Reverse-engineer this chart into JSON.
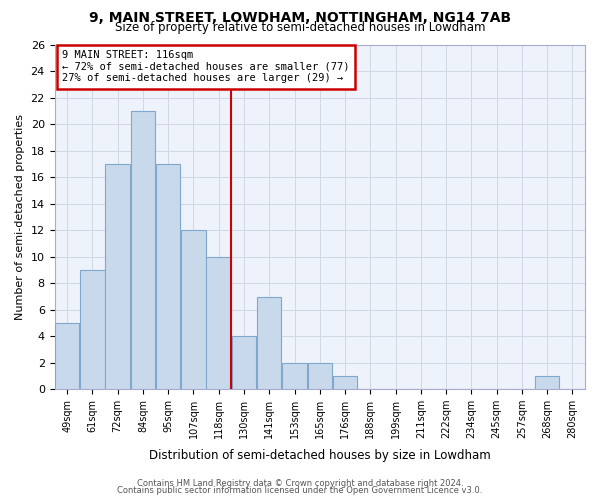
{
  "title": "9, MAIN STREET, LOWDHAM, NOTTINGHAM, NG14 7AB",
  "subtitle": "Size of property relative to semi-detached houses in Lowdham",
  "xlabel": "Distribution of semi-detached houses by size in Lowdham",
  "ylabel": "Number of semi-detached properties",
  "bins": [
    "49sqm",
    "61sqm",
    "72sqm",
    "84sqm",
    "95sqm",
    "107sqm",
    "118sqm",
    "130sqm",
    "141sqm",
    "153sqm",
    "165sqm",
    "176sqm",
    "188sqm",
    "199sqm",
    "211sqm",
    "222sqm",
    "234sqm",
    "245sqm",
    "257sqm",
    "268sqm",
    "280sqm"
  ],
  "values": [
    5,
    9,
    17,
    21,
    17,
    12,
    10,
    4,
    7,
    2,
    2,
    1,
    0,
    0,
    0,
    0,
    0,
    0,
    0,
    1,
    0
  ],
  "ylim": [
    0,
    26
  ],
  "yticks": [
    0,
    2,
    4,
    6,
    8,
    10,
    12,
    14,
    16,
    18,
    20,
    22,
    24,
    26
  ],
  "bar_color": "#c9d9ec",
  "bar_edge_color": "#7fa8cc",
  "property_line_x": 6,
  "annotation_box_color": "#cc0000",
  "grid_color": "#d0d8e8",
  "background_color": "#eef2fa",
  "footer_line1": "Contains HM Land Registry data © Crown copyright and database right 2024.",
  "footer_line2": "Contains public sector information licensed under the Open Government Licence v3.0."
}
